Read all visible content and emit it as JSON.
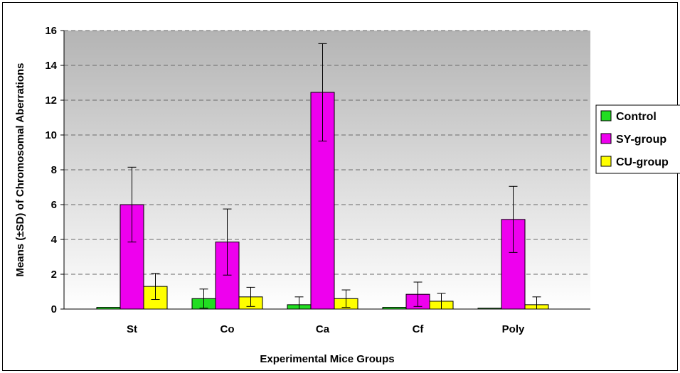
{
  "chart_data": {
    "type": "bar",
    "title": "",
    "xlabel": "Experimental Mice Groups",
    "ylabel": "Means (±SD) of Chromosomal Aberrations",
    "ylim": [
      0,
      16
    ],
    "yticks": [
      0,
      2,
      4,
      6,
      8,
      10,
      12,
      14,
      16
    ],
    "grid": true,
    "legend_position": "right",
    "categories": [
      "St",
      "Co",
      "Ca",
      "Cf",
      "Poly"
    ],
    "series": [
      {
        "name": "Control",
        "color": "#22dd22",
        "values": [
          0.1,
          0.6,
          0.25,
          0.1,
          0.05
        ],
        "errors": [
          0.0,
          0.55,
          0.45,
          0.0,
          0.0
        ]
      },
      {
        "name": "SY-group",
        "color": "#ee00ee",
        "values": [
          6.0,
          3.85,
          12.45,
          0.85,
          5.15
        ],
        "errors": [
          2.15,
          1.9,
          2.8,
          0.7,
          1.9
        ]
      },
      {
        "name": "CU-group",
        "color": "#ffff00",
        "values": [
          1.3,
          0.7,
          0.6,
          0.45,
          0.25
        ],
        "errors": [
          0.75,
          0.55,
          0.5,
          0.45,
          0.45
        ]
      }
    ]
  }
}
